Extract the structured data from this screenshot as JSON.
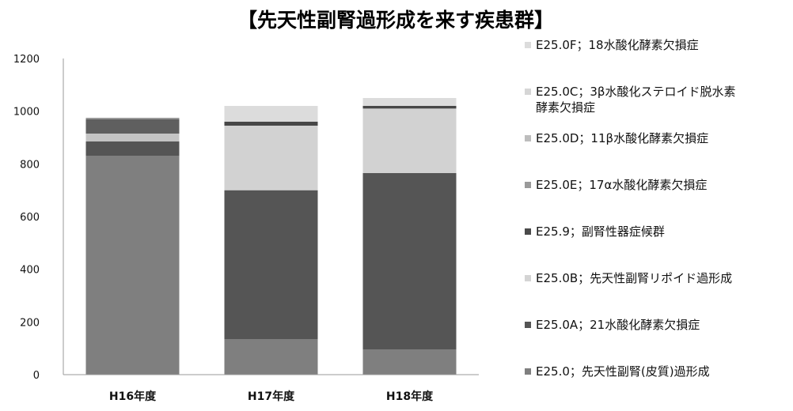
{
  "chart_data": {
    "type": "bar",
    "stacked": true,
    "title": "【先天性副腎過形成を来す疾患群】",
    "xlabel": "",
    "ylabel": "",
    "ylim": [
      0,
      1200
    ],
    "yticks": [
      0,
      200,
      400,
      600,
      800,
      1000,
      1200
    ],
    "grid": false,
    "legend_position": "right",
    "categories": [
      "H16年度",
      "H17年度",
      "H18年度"
    ],
    "series": [
      {
        "name": "E25.0；先天性副腎(皮質)過形成",
        "color": "#7f7f7f",
        "values": [
          830,
          135,
          95
        ]
      },
      {
        "name": "E25.0A；21水酸化酵素欠損症",
        "color": "#555555",
        "values": [
          55,
          565,
          670
        ]
      },
      {
        "name": "E25.0B；先天性副腎リポイド過形成",
        "color": "#c4c4c4",
        "values": [
          30,
          0,
          0
        ]
      },
      {
        "name": "E25.9；副腎性器症候群",
        "color": "#5f5f5f",
        "values": [
          55,
          0,
          0
        ]
      },
      {
        "name": "E25.0E；17α水酸化酵素欠損症",
        "color": "#9a9a9a",
        "values": [
          5,
          0,
          0
        ]
      },
      {
        "name": "E25.0D；11β水酸化酵素欠損症",
        "color": "#d2d2d2",
        "values": [
          0,
          245,
          245
        ]
      },
      {
        "name": "E25.0C；3β水酸化ステロイド脱水素酵素欠損症",
        "color": "#474747",
        "values": [
          0,
          15,
          10
        ]
      },
      {
        "name": "E25.0F；18水酸化酵素欠損症",
        "color": "#dcdcdc",
        "values": [
          0,
          60,
          30
        ]
      }
    ],
    "legend": [
      {
        "lines": [
          "E25.0F；18水酸化酵素欠損症"
        ],
        "color": "#dcdcdc"
      },
      {
        "lines": [
          "E25.0C；3β水酸化ステロイド脱水素",
          "酵素欠損症"
        ],
        "color": "#d6d6d6"
      },
      {
        "lines": [
          "E25.0D；11β水酸化酵素欠損症"
        ],
        "color": "#bdbdbd"
      },
      {
        "lines": [
          "E25.0E；17α水酸化酵素欠損症"
        ],
        "color": "#9a9a9a"
      },
      {
        "lines": [
          "E25.9；副腎性器症候群"
        ],
        "color": "#4a4a4a"
      },
      {
        "lines": [
          "E25.0B；先天性副腎リポイド過形成"
        ],
        "color": "#d4d4d4"
      },
      {
        "lines": [
          "E25.0A；21水酸化酵素欠損症"
        ],
        "color": "#555555"
      },
      {
        "lines": [
          "E25.0；先天性副腎(皮質)過形成"
        ],
        "color": "#7f7f7f"
      }
    ]
  }
}
